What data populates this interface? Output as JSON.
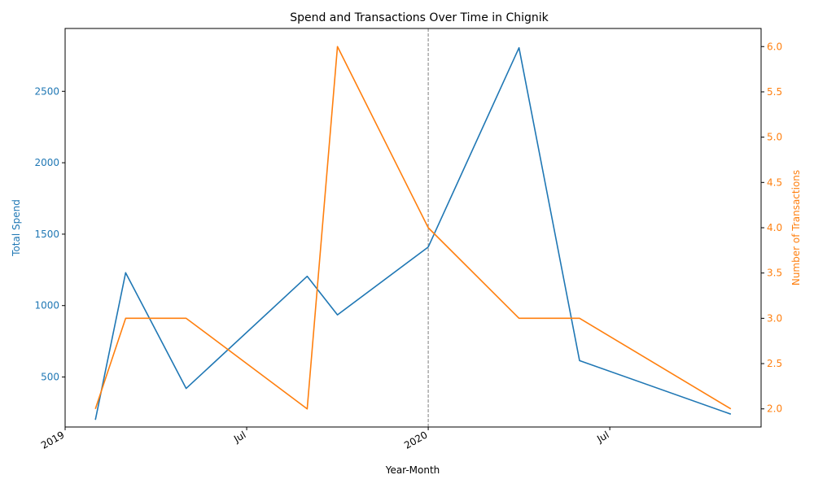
{
  "chart_data": {
    "type": "line",
    "title": "Spend and Transactions Over Time in Chignik",
    "xlabel": "Year-Month",
    "ylabel_left": "Total Spend",
    "ylabel_right": "Number of Transactions",
    "x": [
      "2019-02",
      "2019-03",
      "2019-05",
      "2019-09",
      "2019-10",
      "2020-01",
      "2020-04",
      "2020-06",
      "2020-11"
    ],
    "x_ticks": [
      {
        "date": "2019-01",
        "label": "2019"
      },
      {
        "date": "2019-07",
        "label": "Jul"
      },
      {
        "date": "2020-01",
        "label": "2020"
      },
      {
        "date": "2020-07",
        "label": "Jul"
      }
    ],
    "x_range": [
      "2019-01",
      "2020-12"
    ],
    "reference_line": "2020-01",
    "series": [
      {
        "axis": "left",
        "color": "#1f77b4",
        "values": [
          200,
          1230,
          420,
          1205,
          935,
          1410,
          2805,
          615,
          240
        ]
      },
      {
        "axis": "right",
        "color": "#ff7f0e",
        "values": [
          2,
          3,
          3,
          2,
          6,
          4,
          3,
          3,
          2
        ]
      }
    ],
    "ylim_left": [
      150,
      2940
    ],
    "yticks_left": [
      500,
      1000,
      1500,
      2000,
      2500
    ],
    "ylim_right": [
      1.8,
      6.2
    ],
    "yticks_right": [
      2.0,
      2.5,
      3.0,
      3.5,
      4.0,
      4.5,
      5.0,
      5.5,
      6.0
    ],
    "grid": false
  }
}
